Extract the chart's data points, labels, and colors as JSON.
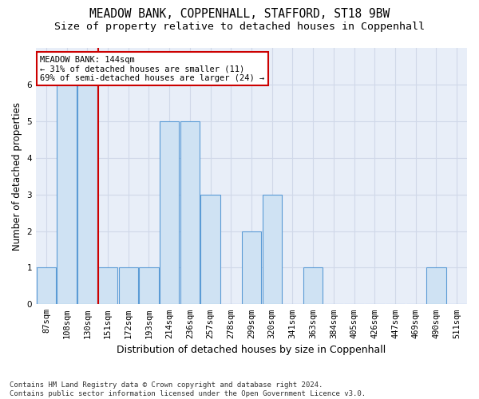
{
  "title": "MEADOW BANK, COPPENHALL, STAFFORD, ST18 9BW",
  "subtitle": "Size of property relative to detached houses in Coppenhall",
  "xlabel": "Distribution of detached houses by size in Coppenhall",
  "ylabel": "Number of detached properties",
  "categories": [
    "87sqm",
    "108sqm",
    "130sqm",
    "151sqm",
    "172sqm",
    "193sqm",
    "214sqm",
    "236sqm",
    "257sqm",
    "278sqm",
    "299sqm",
    "320sqm",
    "341sqm",
    "363sqm",
    "384sqm",
    "405sqm",
    "426sqm",
    "447sqm",
    "469sqm",
    "490sqm",
    "511sqm"
  ],
  "values": [
    1,
    6,
    6,
    1,
    1,
    1,
    5,
    5,
    3,
    0,
    2,
    3,
    0,
    1,
    0,
    0,
    0,
    0,
    0,
    1,
    0
  ],
  "bar_color": "#cfe2f3",
  "bar_edge_color": "#5b9bd5",
  "red_line_x": 2.525,
  "red_line_color": "#cc0000",
  "annotation_text": "MEADOW BANK: 144sqm\n← 31% of detached houses are smaller (11)\n69% of semi-detached houses are larger (24) →",
  "annotation_box_color": "#ffffff",
  "annotation_box_edge": "#cc0000",
  "ylim": [
    0,
    7
  ],
  "yticks": [
    0,
    1,
    2,
    3,
    4,
    5,
    6,
    7
  ],
  "grid_color": "#d0d8e8",
  "background_color": "#e8eef8",
  "footnote": "Contains HM Land Registry data © Crown copyright and database right 2024.\nContains public sector information licensed under the Open Government Licence v3.0.",
  "title_fontsize": 10.5,
  "subtitle_fontsize": 9.5,
  "xlabel_fontsize": 9,
  "ylabel_fontsize": 8.5,
  "tick_fontsize": 7.5,
  "annot_fontsize": 7.5,
  "footnote_fontsize": 6.5
}
